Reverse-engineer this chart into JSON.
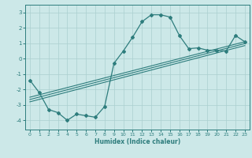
{
  "xlabel": "Humidex (Indice chaleur)",
  "bg_color": "#cce8e8",
  "grid_color": "#aacfcf",
  "line_color": "#2e7d7d",
  "xlim": [
    -0.5,
    23.5
  ],
  "ylim": [
    -4.6,
    3.5
  ],
  "x_ticks": [
    0,
    1,
    2,
    3,
    4,
    5,
    6,
    7,
    8,
    9,
    10,
    11,
    12,
    13,
    14,
    15,
    16,
    17,
    18,
    19,
    20,
    21,
    22,
    23
  ],
  "y_ticks": [
    -4,
    -3,
    -2,
    -1,
    0,
    1,
    2,
    3
  ],
  "main_x": [
    0,
    1,
    2,
    3,
    4,
    5,
    6,
    7,
    8,
    9,
    10,
    11,
    12,
    13,
    14,
    15,
    16,
    17,
    18,
    19,
    20,
    21,
    22,
    23
  ],
  "main_y": [
    -1.4,
    -2.2,
    -3.3,
    -3.5,
    -4.0,
    -3.6,
    -3.7,
    -3.8,
    -3.1,
    -0.3,
    0.5,
    1.4,
    2.4,
    2.85,
    2.85,
    2.7,
    1.5,
    0.65,
    0.7,
    0.55,
    0.55,
    0.5,
    1.5,
    1.1
  ],
  "line2_x": [
    0,
    23
  ],
  "line2_y": [
    -2.8,
    0.85
  ],
  "line3_x": [
    0,
    23
  ],
  "line3_y": [
    -2.5,
    1.1
  ],
  "line4_x": [
    0,
    23
  ],
  "line4_y": [
    -2.65,
    0.98
  ]
}
